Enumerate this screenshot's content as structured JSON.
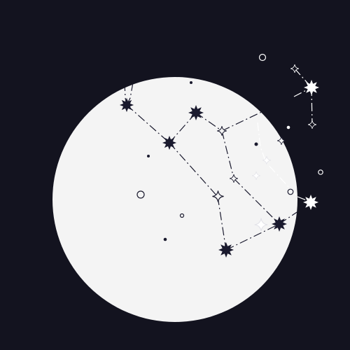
{
  "colors": {
    "background": "#13131f",
    "moon": "#f4f4f4",
    "ink": "#1a1a2e",
    "light": "#ffffff"
  },
  "scene": {
    "moon": "moon-disc",
    "constellation": "constellation-lines",
    "icons": [
      "eight-point-star-icon",
      "four-point-star-icon",
      "dot-icon",
      "ring-icon"
    ]
  }
}
